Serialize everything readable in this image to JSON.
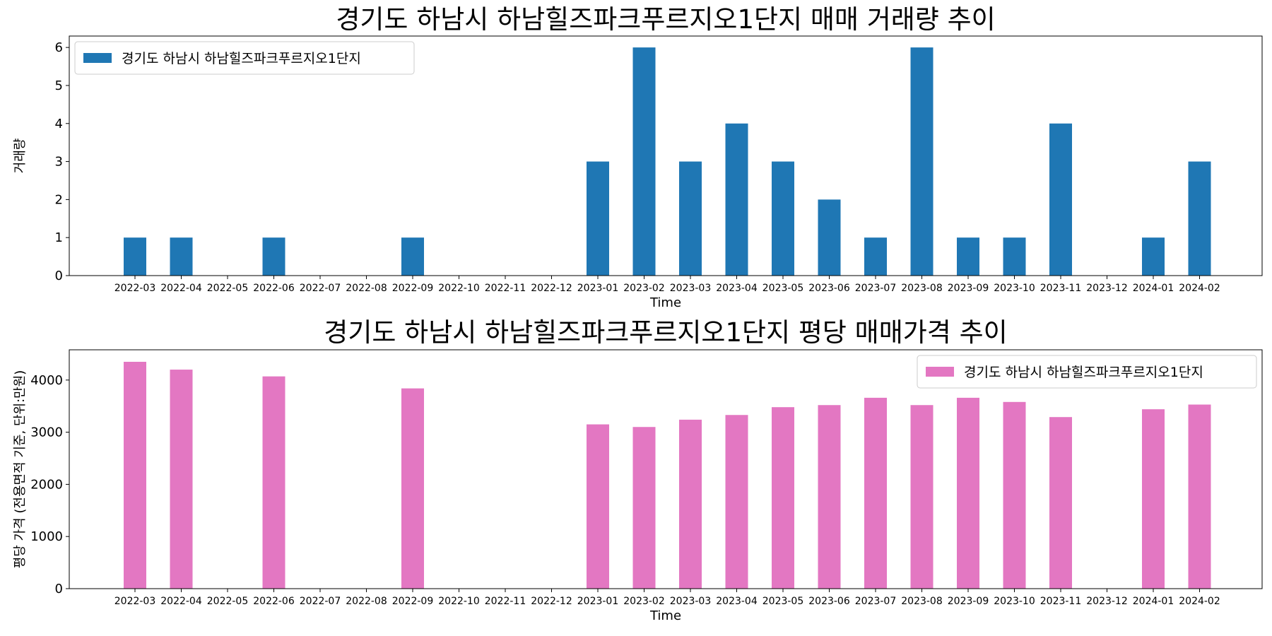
{
  "chart_data": [
    {
      "type": "bar",
      "title": "경기도 하남시 하남힐즈파크푸르지오1단지 매매 거래량 추이",
      "xlabel": "Time",
      "ylabel": "거래량",
      "categories": [
        "2022-03",
        "2022-04",
        "2022-05",
        "2022-06",
        "2022-07",
        "2022-08",
        "2022-09",
        "2022-10",
        "2022-11",
        "2022-12",
        "2023-01",
        "2023-02",
        "2023-03",
        "2023-04",
        "2023-05",
        "2023-06",
        "2023-07",
        "2023-08",
        "2023-09",
        "2023-10",
        "2023-11",
        "2023-12",
        "2024-01",
        "2024-02"
      ],
      "series": [
        {
          "name": "경기도 하남시 하남힐즈파크푸르지오1단지",
          "color": "#1f77b4",
          "values": [
            1,
            1,
            0,
            1,
            0,
            0,
            1,
            0,
            0,
            0,
            3,
            6,
            3,
            4,
            3,
            2,
            1,
            6,
            1,
            1,
            4,
            0,
            1,
            3
          ]
        }
      ],
      "ylim": [
        0,
        6.3
      ],
      "yticks": [
        0,
        1,
        2,
        3,
        4,
        5,
        6
      ],
      "grid": false,
      "legend_position": "upper-left"
    },
    {
      "type": "bar",
      "title": "경기도 하남시 하남힐즈파크푸르지오1단지 평당 매매가격 추이",
      "xlabel": "Time",
      "ylabel": "평당 가격 (전용면적 기준, 단위:만원)",
      "categories": [
        "2022-03",
        "2022-04",
        "2022-05",
        "2022-06",
        "2022-07",
        "2022-08",
        "2022-09",
        "2022-10",
        "2022-11",
        "2022-12",
        "2023-01",
        "2023-02",
        "2023-03",
        "2023-04",
        "2023-05",
        "2023-06",
        "2023-07",
        "2023-08",
        "2023-09",
        "2023-10",
        "2023-11",
        "2023-12",
        "2024-01",
        "2024-02"
      ],
      "series": [
        {
          "name": "경기도 하남시 하남힐즈파크푸르지오1단지",
          "color": "#e377c2",
          "values": [
            4350,
            4200,
            0,
            4070,
            0,
            0,
            3840,
            0,
            0,
            0,
            3150,
            3100,
            3240,
            3330,
            3480,
            3520,
            3660,
            3520,
            3660,
            3580,
            3290,
            0,
            3440,
            3530
          ]
        }
      ],
      "ylim": [
        0,
        4580
      ],
      "yticks": [
        0,
        1000,
        2000,
        3000,
        4000
      ],
      "grid": false,
      "legend_position": "upper-right"
    }
  ]
}
